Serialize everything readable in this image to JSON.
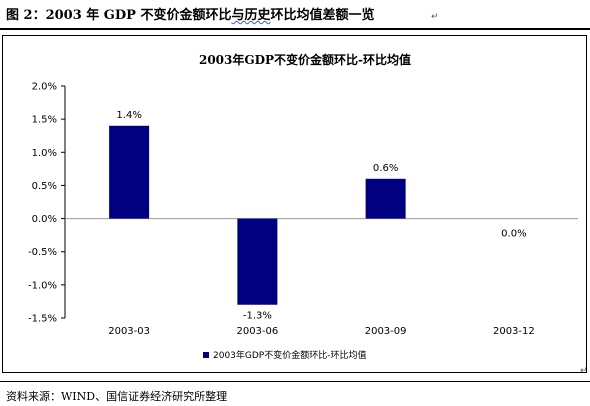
{
  "figure": {
    "heading_prefix": "图 2：2003 年 GDP 不变价金额环比",
    "heading_wavy": "与历史",
    "heading_suffix": "环比均值差额一览",
    "source": "资料来源：WIND、国信证券经济研究所整理"
  },
  "chart_data": {
    "type": "bar",
    "title": "2003年GDP不变价金额环比-环比均值",
    "categories": [
      "2003-03",
      "2003-06",
      "2003-09",
      "2003-12"
    ],
    "series": [
      {
        "name": "2003年GDP不变价金额环比-环比均值",
        "values": [
          1.4,
          -1.3,
          0.6,
          0.0
        ]
      }
    ],
    "data_labels": [
      "1.4%",
      "-1.3%",
      "0.6%",
      "0.0%"
    ],
    "yticks": [
      "2.0%",
      "1.5%",
      "1.0%",
      "0.5%",
      "0.0%",
      "-0.5%",
      "-1.0%",
      "-1.5%"
    ],
    "ylim": [
      -1.5,
      2.0
    ],
    "xlabel": "",
    "ylabel": "",
    "legend_position": "bottom",
    "grid": false,
    "colors": {
      "bar": "#000080",
      "zero_line": "#999999"
    }
  }
}
